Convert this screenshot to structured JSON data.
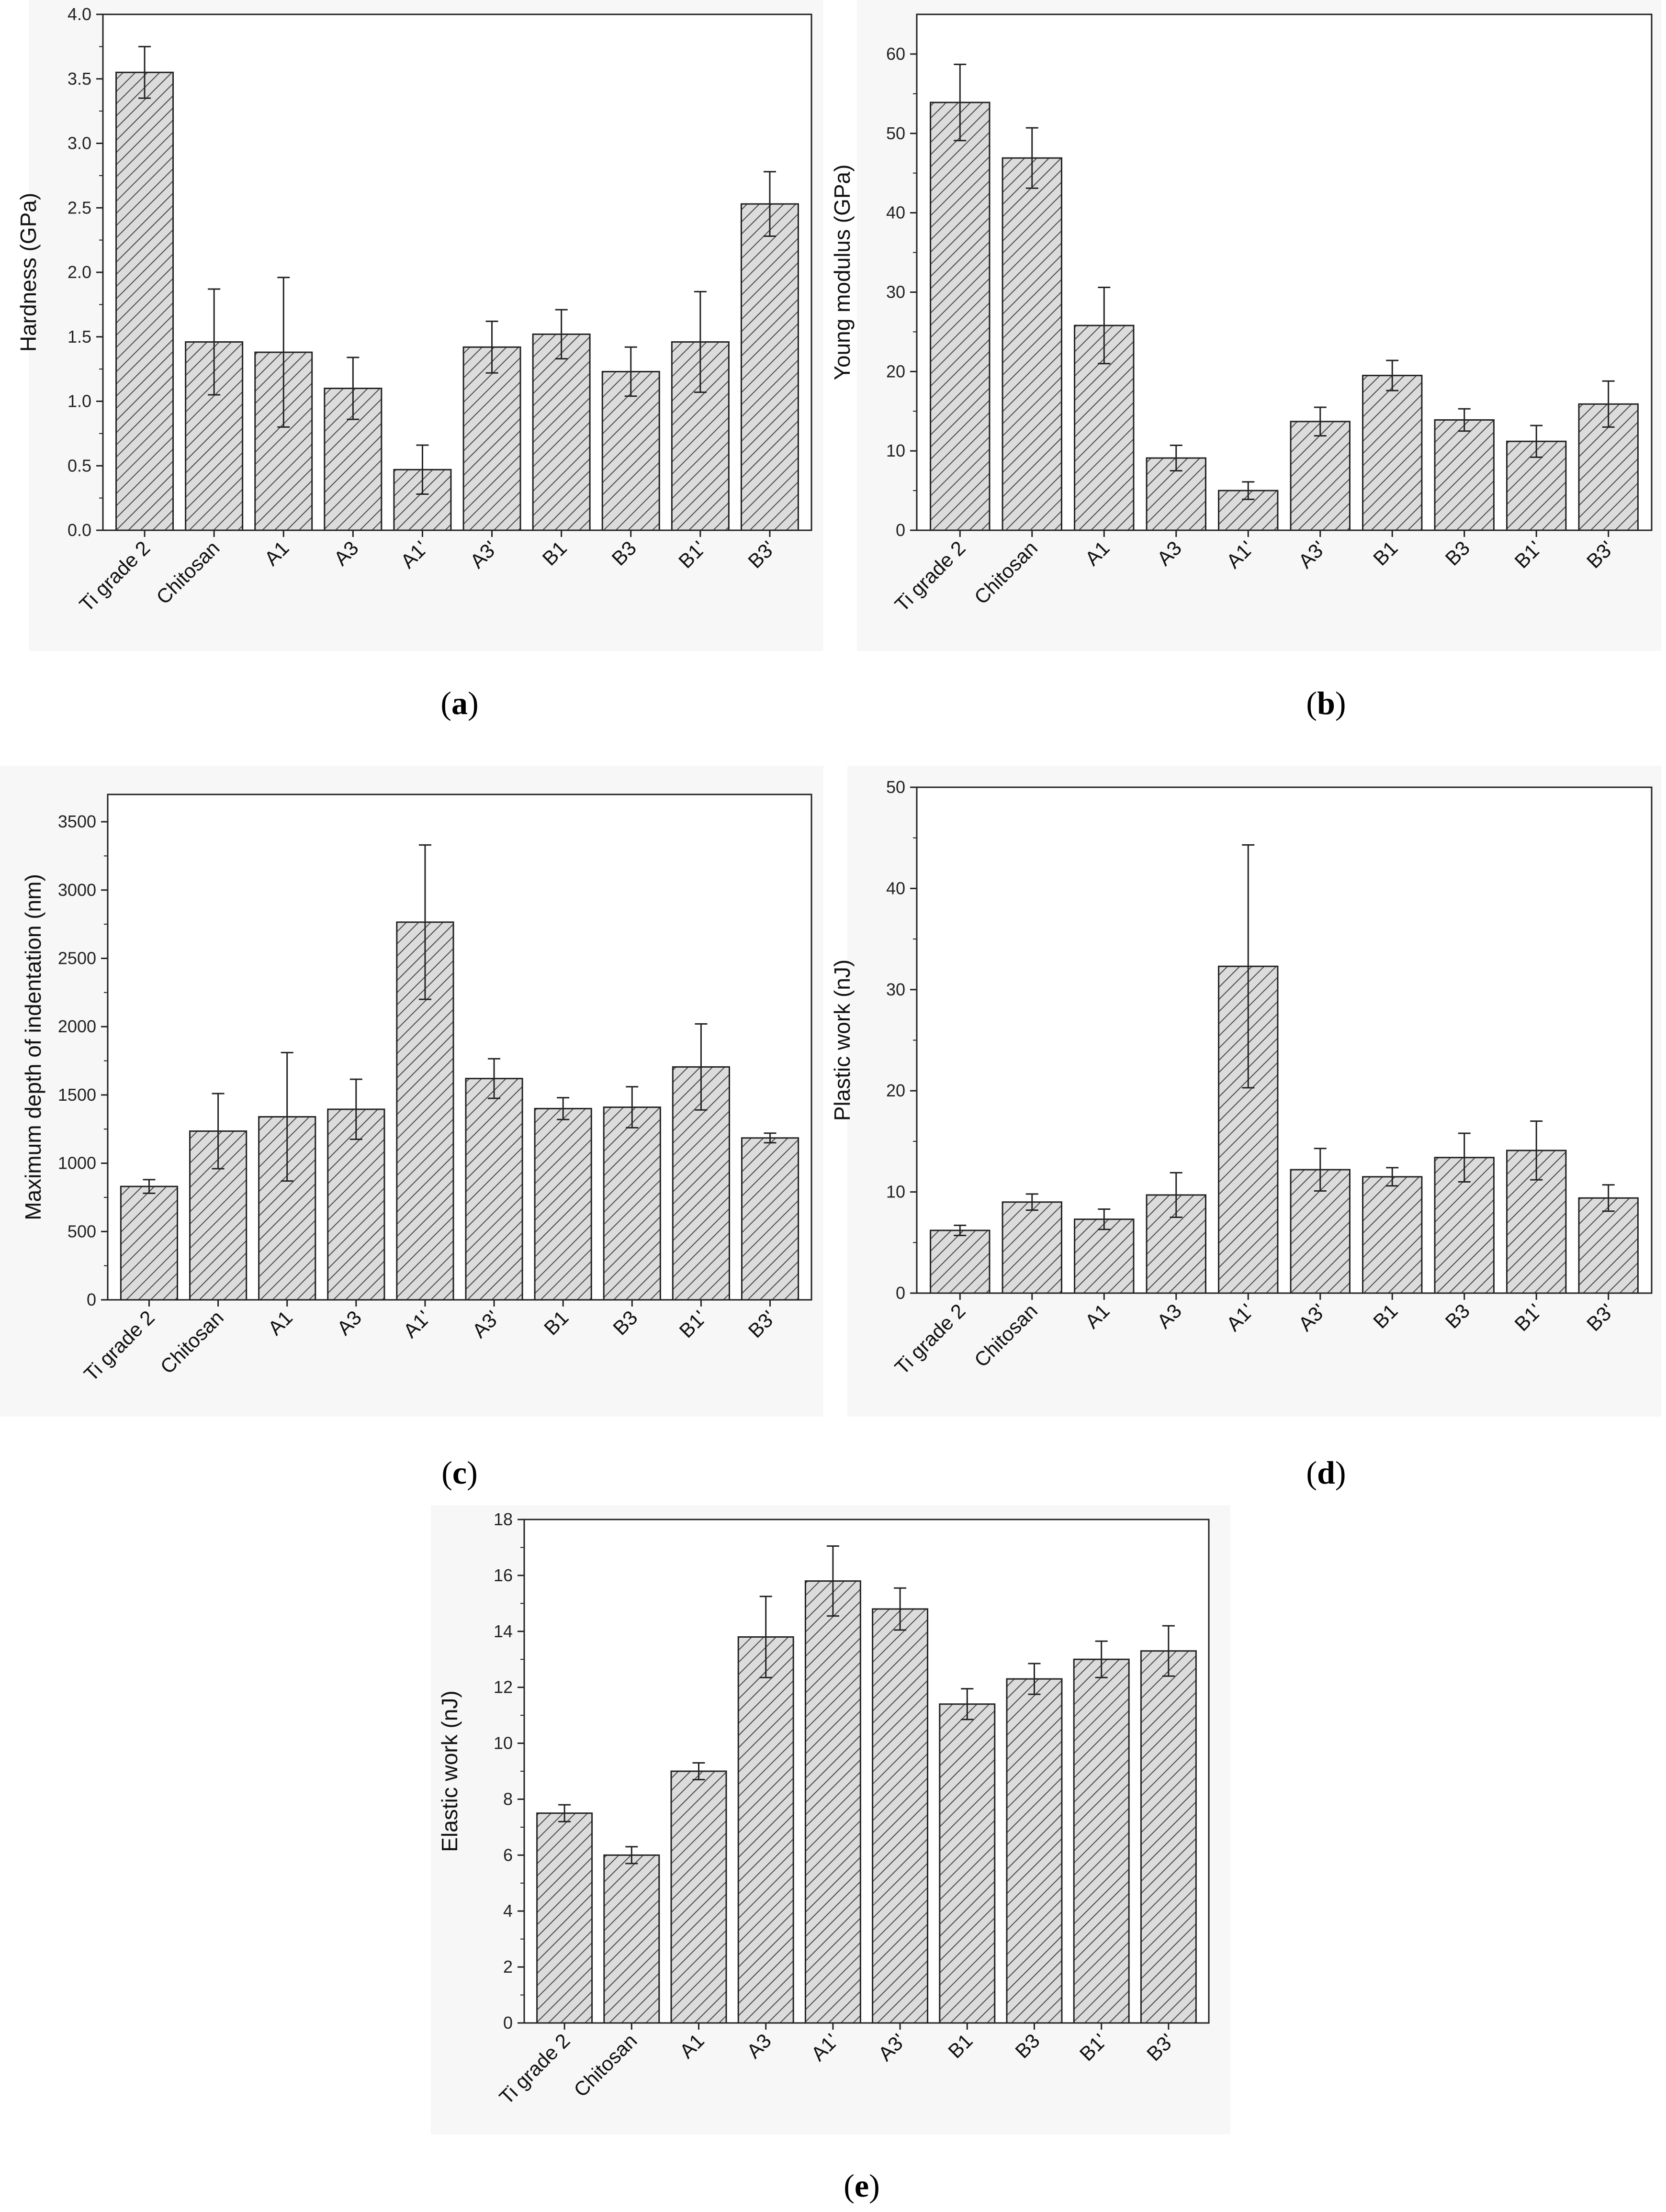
{
  "figure": {
    "categories": [
      "Ti grade 2",
      "Chitosan",
      "A1",
      "A3",
      "A1'",
      "A3'",
      "B1",
      "B3",
      "B1'",
      "B3'"
    ],
    "colors": {
      "bar_fill": "#dcdcdc",
      "hatch": "#4a4a4a",
      "axis": "#222222",
      "error_bar": "#222222"
    }
  },
  "chart_data": [
    {
      "id": "a",
      "type": "bar",
      "caption": "(a)",
      "caption_bold": "a",
      "title": "",
      "xlabel": "",
      "ylabel": "Hardness (GPa)",
      "ylim": [
        0,
        4.0
      ],
      "yticks": [
        0.0,
        0.5,
        1.0,
        1.5,
        2.0,
        2.5,
        3.0,
        3.5,
        4.0
      ],
      "ytick_labels": [
        "0.0",
        "0.5",
        "1.0",
        "1.5",
        "2.0",
        "2.5",
        "3.0",
        "3.5",
        "4.0"
      ],
      "categories": [
        "Ti grade 2",
        "Chitosan",
        "A1",
        "A3",
        "A1'",
        "A3'",
        "B1",
        "B3",
        "B1'",
        "B3'"
      ],
      "values": [
        3.55,
        1.46,
        1.38,
        1.1,
        0.47,
        1.42,
        1.52,
        1.23,
        1.46,
        2.53
      ],
      "errors": [
        0.2,
        0.41,
        0.58,
        0.24,
        0.19,
        0.2,
        0.19,
        0.19,
        0.39,
        0.25
      ]
    },
    {
      "id": "b",
      "type": "bar",
      "caption": "(b)",
      "caption_bold": "b",
      "title": "",
      "xlabel": "",
      "ylabel": "Young modulus (GPa)",
      "ylim": [
        0,
        65
      ],
      "yticks": [
        0,
        10,
        20,
        30,
        40,
        50,
        60
      ],
      "ytick_labels": [
        "0",
        "10",
        "20",
        "30",
        "40",
        "50",
        "60"
      ],
      "categories": [
        "Ti grade 2",
        "Chitosan",
        "A1",
        "A3",
        "A1'",
        "A3'",
        "B1",
        "B3",
        "B1'",
        "B3'"
      ],
      "values": [
        53.9,
        46.9,
        25.8,
        9.1,
        5.0,
        13.7,
        19.5,
        13.9,
        11.2,
        15.9
      ],
      "errors": [
        4.8,
        3.8,
        4.8,
        1.6,
        1.1,
        1.8,
        1.9,
        1.4,
        2.0,
        2.9
      ]
    },
    {
      "id": "c",
      "type": "bar",
      "caption": "(c)",
      "caption_bold": "c",
      "title": "",
      "xlabel": "",
      "ylabel": "Maximum depth of indentation (nm)",
      "ylim": [
        0,
        3700
      ],
      "yticks": [
        0,
        500,
        1000,
        1500,
        2000,
        2500,
        3000,
        3500
      ],
      "ytick_labels": [
        "0",
        "500",
        "1000",
        "1500",
        "2000",
        "2500",
        "3000",
        "3500"
      ],
      "categories": [
        "Ti grade 2",
        "Chitosan",
        "A1",
        "A3",
        "A1'",
        "A3'",
        "B1",
        "B3",
        "B1'",
        "B3'"
      ],
      "values": [
        830,
        1235,
        1340,
        1395,
        2765,
        1620,
        1400,
        1410,
        1705,
        1185
      ],
      "errors": [
        50,
        275,
        470,
        220,
        565,
        145,
        80,
        150,
        315,
        35
      ]
    },
    {
      "id": "d",
      "type": "bar",
      "caption": "(d)",
      "caption_bold": "d",
      "title": "",
      "xlabel": "",
      "ylabel": "Plastic work (nJ)",
      "ylim": [
        0,
        50
      ],
      "yticks": [
        0,
        10,
        20,
        30,
        40,
        50
      ],
      "ytick_labels": [
        "0",
        "10",
        "20",
        "30",
        "40",
        "50"
      ],
      "categories": [
        "Ti grade 2",
        "Chitosan",
        "A1",
        "A3",
        "A1'",
        "A3'",
        "B1",
        "B3",
        "B1'",
        "B3'"
      ],
      "values": [
        6.2,
        9.0,
        7.3,
        9.7,
        32.3,
        12.2,
        11.5,
        13.4,
        14.1,
        9.4
      ],
      "errors": [
        0.5,
        0.8,
        1.0,
        2.2,
        12.0,
        2.1,
        0.9,
        2.4,
        2.9,
        1.3
      ]
    },
    {
      "id": "e",
      "type": "bar",
      "caption": "(e)",
      "caption_bold": "e",
      "title": "",
      "xlabel": "",
      "ylabel": "Elastic work (nJ)",
      "ylim": [
        0,
        18
      ],
      "yticks": [
        0,
        2,
        4,
        6,
        8,
        10,
        12,
        14,
        16,
        18
      ],
      "ytick_labels": [
        "0",
        "2",
        "4",
        "6",
        "8",
        "10",
        "12",
        "14",
        "16",
        "18"
      ],
      "categories": [
        "Ti grade 2",
        "Chitosan",
        "A1",
        "A3",
        "A1'",
        "A3'",
        "B1",
        "B3",
        "B1'",
        "B3'"
      ],
      "values": [
        7.5,
        6.0,
        9.0,
        13.8,
        15.8,
        14.8,
        11.4,
        12.3,
        13.0,
        13.3
      ],
      "errors": [
        0.3,
        0.3,
        0.3,
        1.45,
        1.25,
        0.75,
        0.55,
        0.55,
        0.65,
        0.9
      ]
    }
  ]
}
